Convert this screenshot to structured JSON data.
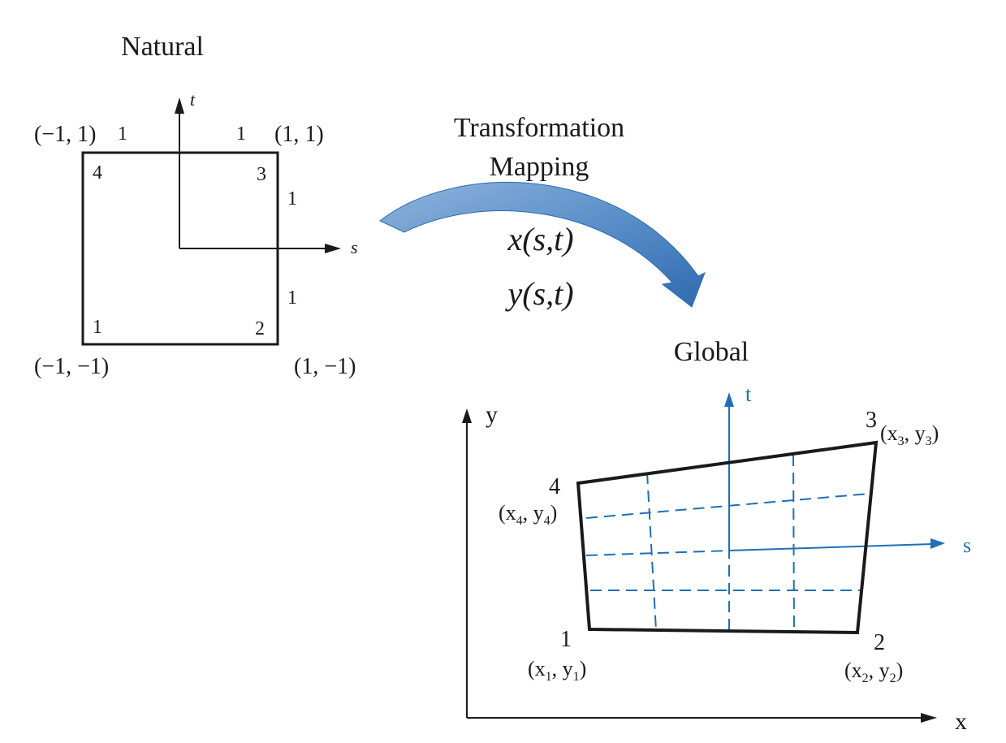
{
  "natural": {
    "title": "Natural",
    "axis_s": "s",
    "axis_t": "t",
    "corners": {
      "c1": "(−1, −1)",
      "c2": "(1, −1)",
      "c3": "(1, 1)",
      "c4": "(−1, 1)"
    },
    "nodes": {
      "n1": "1",
      "n2": "2",
      "n3": "3",
      "n4": "4"
    },
    "dims": {
      "top_left": "1",
      "top_right": "1",
      "right_top": "1",
      "right_bottom": "1"
    }
  },
  "mapping": {
    "title_line1": "Transformation",
    "title_line2": "Mapping",
    "x_func": "x(s,t)",
    "y_func": "y(s,t)"
  },
  "global": {
    "title": "Global",
    "axis_x": "x",
    "axis_y": "y",
    "axis_s": "s",
    "axis_t": "t",
    "nodes": {
      "n1": "1",
      "n2": "2",
      "n3": "3",
      "n4": "4"
    },
    "coords": {
      "c1": {
        "x": "x",
        "xsub": "1",
        "sep": ", ",
        "y": "y",
        "ysub": "1"
      },
      "c2": {
        "x": "x",
        "xsub": "2",
        "sep": ", ",
        "y": "y",
        "ysub": "2"
      },
      "c3": {
        "x": "x",
        "xsub": "3",
        "sep": ", ",
        "y": "y",
        "ysub": "3"
      },
      "c4": {
        "x": "x",
        "xsub": "4",
        "sep": ", ",
        "y": "y",
        "ysub": "4"
      }
    }
  },
  "colors": {
    "ink": "#1a1a1a",
    "blue": "#1f6fb8",
    "arrow_light": "#8fb4dc",
    "arrow_dark": "#2f6bb0"
  }
}
